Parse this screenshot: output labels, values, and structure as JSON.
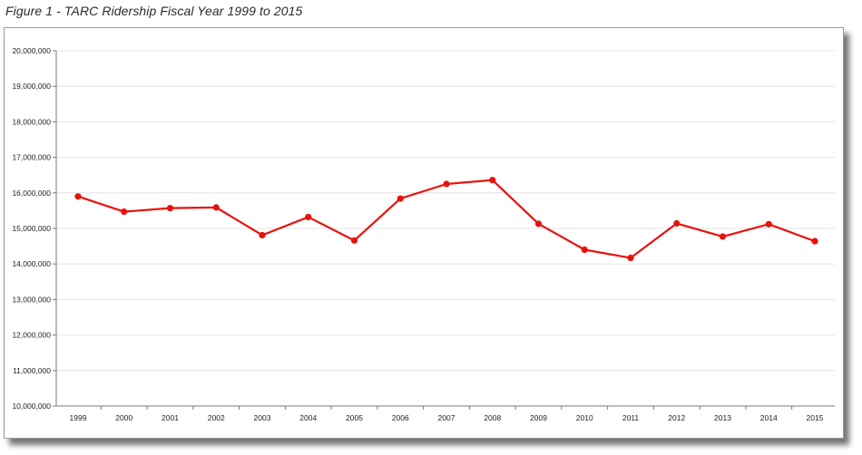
{
  "figure_title": "Figure 1 - TARC Ridership Fiscal Year 1999 to 2015",
  "colors": {
    "series": "#e8120c",
    "grid": "#e4e4e4",
    "axis": "#7a7a7a",
    "tick_text": "#222222"
  },
  "chart_data": {
    "type": "line",
    "title": "",
    "xlabel": "",
    "ylabel": "",
    "categories": [
      "1999",
      "2000",
      "2001",
      "2002",
      "2003",
      "2004",
      "2005",
      "2006",
      "2007",
      "2008",
      "2009",
      "2010",
      "2011",
      "2012",
      "2013",
      "2014",
      "2015"
    ],
    "series": [
      {
        "values": [
          15900000,
          15470000,
          15570000,
          15590000,
          14810000,
          15320000,
          14660000,
          15840000,
          16250000,
          16360000,
          15130000,
          14400000,
          14170000,
          15140000,
          14770000,
          15120000,
          14640000
        ]
      }
    ],
    "ylim": [
      10000000,
      20000000
    ],
    "y_ticks": [
      "10,000,000",
      "11,000,000",
      "12,000,000",
      "13,000,000",
      "14,000,000",
      "15,000,000",
      "16,000,000",
      "17,000,000",
      "18,000,000",
      "19,000,000",
      "20,000,000"
    ],
    "grid": true,
    "legend": "none"
  }
}
